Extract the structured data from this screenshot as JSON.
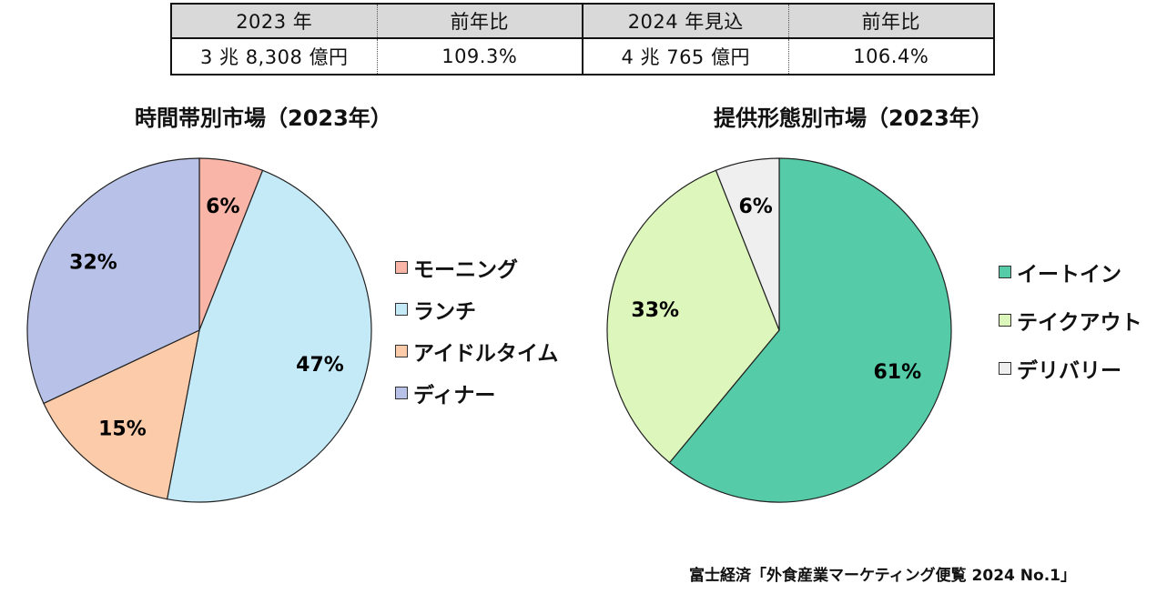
{
  "summary_table": {
    "headers": [
      "2023 年",
      "前年比",
      "2024 年見込",
      "前年比"
    ],
    "values": [
      "3 兆 8,308 億円",
      "109.3%",
      "4 兆 765 億円",
      "106.4%"
    ]
  },
  "chart_data": [
    {
      "type": "pie",
      "title": "時間帯別市場（2023年）",
      "slices": [
        {
          "label": "モーニング",
          "value": 6,
          "display": "6%",
          "color": "#f8b5a8"
        },
        {
          "label": "ランチ",
          "value": 47,
          "display": "47%",
          "color": "#c4eaf8"
        },
        {
          "label": "アイドルタイム",
          "value": 15,
          "display": "15%",
          "color": "#fcccaa"
        },
        {
          "label": "ディナー",
          "value": 32,
          "display": "32%",
          "color": "#b8c2e8"
        }
      ],
      "legend_position": "right"
    },
    {
      "type": "pie",
      "title": "提供形態別市場（2023年）",
      "slices": [
        {
          "label": "イートイン",
          "value": 61,
          "display": "61%",
          "color": "#55cba7"
        },
        {
          "label": "テイクアウト",
          "value": 33,
          "display": "33%",
          "color": "#ddf6bb"
        },
        {
          "label": "デリバリー",
          "value": 6,
          "display": "6%",
          "color": "#efefef"
        }
      ],
      "legend_position": "right"
    }
  ],
  "source": "富士経済「外食産業マーケティング便覧 2024 No.1」"
}
